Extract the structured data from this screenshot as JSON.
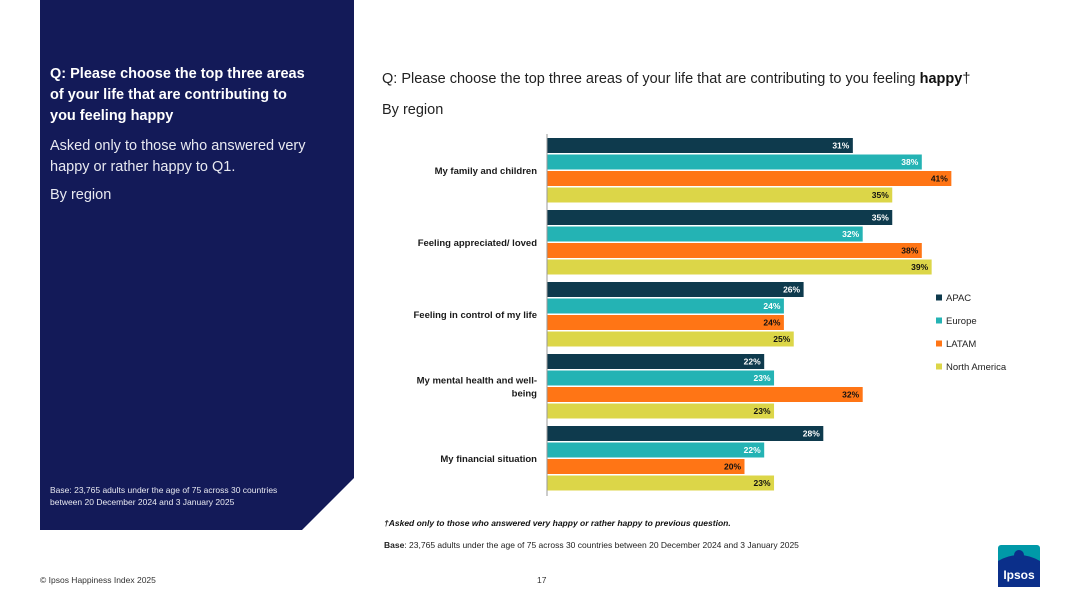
{
  "side": {
    "question": "Q: Please choose the top three areas of your life that are contributing to you feeling happy",
    "note": "Asked only to those who answered very happy or rather happy to Q1.",
    "region": "By region",
    "base": "Base: 23,765 adults under the age of 75 across 30 countries between 20 December 2024 and 3 January 2025"
  },
  "header": {
    "title_prefix": "Q: Please choose the top three areas of your life that are contributing to you feeling ",
    "title_emphasis": "happy",
    "title_suffix": "†",
    "subtitle": "By region"
  },
  "chart_data": {
    "type": "bar",
    "orientation": "horizontal",
    "categories": [
      "My family and children",
      "Feeling appreciated/ loved",
      "Feeling in control of my life",
      "My mental health and well-being",
      "My financial situation"
    ],
    "category_lines": [
      [
        "My family and children"
      ],
      [
        "Feeling appreciated/ loved"
      ],
      [
        "Feeling in control of my life"
      ],
      [
        "My mental health and well-",
        "being"
      ],
      [
        "My financial situation"
      ]
    ],
    "series": [
      {
        "name": "APAC",
        "color": "#0e3a4d",
        "label_color": "#ffffff",
        "values": [
          31,
          35,
          26,
          22,
          28
        ]
      },
      {
        "name": "Europe",
        "color": "#24b3b4",
        "label_color": "#ffffff",
        "values": [
          38,
          32,
          24,
          23,
          22
        ]
      },
      {
        "name": "LATAM",
        "color": "#ff7515",
        "label_color": "#111111",
        "values": [
          41,
          38,
          24,
          32,
          20
        ]
      },
      {
        "name": "North America",
        "color": "#dcd648",
        "label_color": "#111111",
        "values": [
          35,
          39,
          25,
          23,
          23
        ]
      }
    ],
    "value_suffix": "%",
    "xlim": [
      0,
      100
    ],
    "legend_position": "right"
  },
  "footer": {
    "footnote": "†Asked only to those who answered very happy or rather happy to previous question.",
    "base_label": "Base",
    "base_text": ": 23,765 adults under the age of 75 across 30 countries between  20 December 2024 and 3 January 2025",
    "copyright": "© Ipsos Happiness Index 2025",
    "page_number": "17",
    "logo_text": "Ipsos"
  }
}
